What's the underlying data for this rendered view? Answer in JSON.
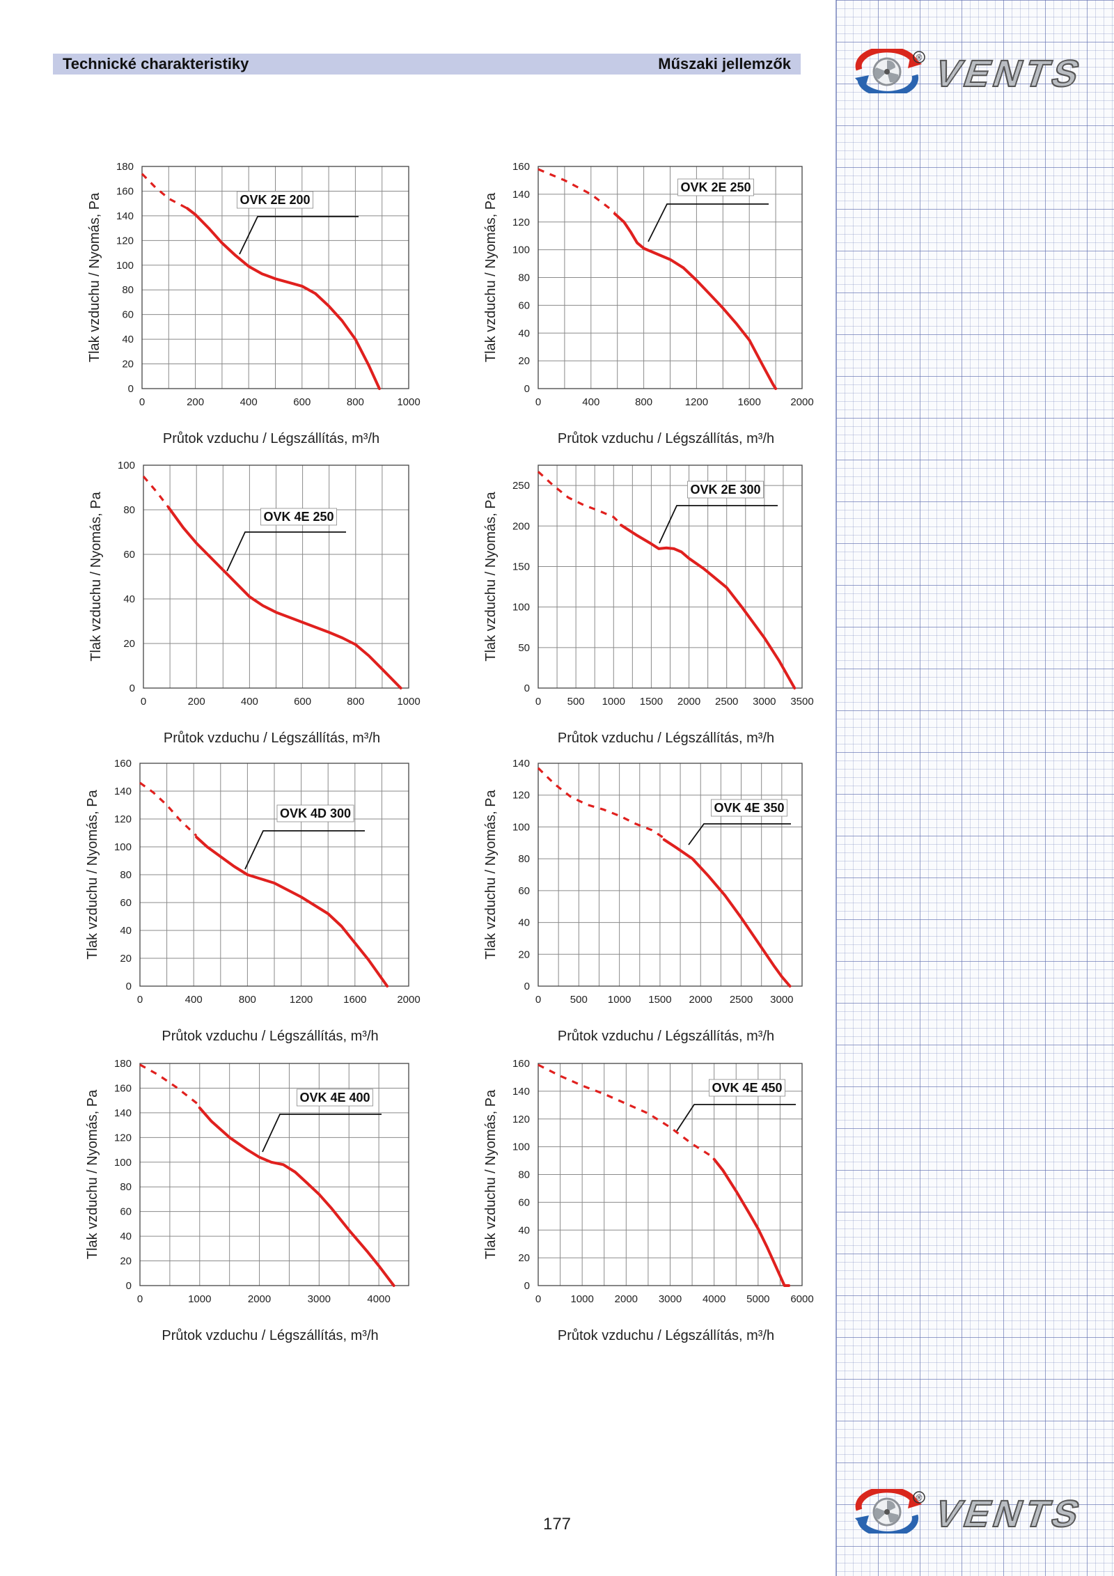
{
  "header": {
    "left": "Technické charakteristiky",
    "right": "Műszaki jellemzők"
  },
  "brand": {
    "name": "VENTS",
    "registered": "®"
  },
  "page_number": "177",
  "colors": {
    "curve": "#e0201e",
    "header_bg": "#c5cbe6",
    "grid": "#8a8a8a",
    "logo_red": "#d9261c",
    "logo_blue": "#2a64b0",
    "logo_silver": "#8e9298"
  },
  "chart_data": [
    {
      "type": "line",
      "title": "OVK 2E 200",
      "xlabel": "Průtok vzduchu / Légszállítás, m³/h",
      "ylabel": "Tlak vzduchu / Nyomás, Pa",
      "xlim": [
        0,
        1000
      ],
      "ylim": [
        0,
        180
      ],
      "xticks": [
        0,
        200,
        400,
        600,
        800,
        1000
      ],
      "yticks": [
        0,
        20,
        40,
        60,
        80,
        100,
        120,
        140,
        160,
        180
      ],
      "grid": true,
      "series": [
        {
          "style": "dashed",
          "x": [
            0,
            50,
            100,
            170
          ],
          "y": [
            174,
            163,
            154,
            146
          ]
        },
        {
          "style": "solid",
          "x": [
            170,
            200,
            250,
            300,
            350,
            400,
            450,
            500,
            550,
            600,
            650,
            700,
            750,
            800,
            850,
            890
          ],
          "y": [
            146,
            141,
            130,
            118,
            108,
            99,
            93,
            89,
            86,
            83,
            77,
            67,
            55,
            40,
            19,
            0
          ]
        }
      ]
    },
    {
      "type": "line",
      "title": "OVK 2E 250",
      "xlabel": "Průtok vzduchu / Légszállítás, m³/h",
      "ylabel": "Tlak vzduchu / Nyomás, Pa",
      "xlim": [
        0,
        2000
      ],
      "ylim": [
        0,
        160
      ],
      "xticks": [
        0,
        400,
        800,
        1200,
        1600,
        2000
      ],
      "yticks": [
        0,
        20,
        40,
        60,
        80,
        100,
        120,
        140,
        160
      ],
      "grid": true,
      "series": [
        {
          "style": "dashed",
          "x": [
            0,
            200,
            400,
            580
          ],
          "y": [
            158,
            150,
            140,
            127
          ]
        },
        {
          "style": "solid",
          "x": [
            580,
            650,
            700,
            750,
            800,
            850,
            900,
            1000,
            1100,
            1200,
            1300,
            1400,
            1500,
            1600,
            1700,
            1780,
            1800
          ],
          "y": [
            126,
            120,
            113,
            105,
            101,
            99,
            97,
            93,
            87,
            78,
            68,
            58,
            47,
            35,
            17,
            3,
            0
          ]
        }
      ]
    },
    {
      "type": "line",
      "title": "OVK 4E 250",
      "xlabel": "Průtok vzduchu / Légszállítás, m³/h",
      "ylabel": "Tlak vzduchu / Nyomás, Pa",
      "xlim": [
        0,
        1000
      ],
      "ylim": [
        0,
        100
      ],
      "xticks": [
        0,
        200,
        400,
        600,
        800,
        1000
      ],
      "yticks": [
        0,
        20,
        40,
        60,
        80,
        100
      ],
      "grid": true,
      "series": [
        {
          "style": "dashed",
          "x": [
            0,
            50,
            95
          ],
          "y": [
            95,
            88,
            81
          ]
        },
        {
          "style": "solid",
          "x": [
            95,
            150,
            200,
            300,
            400,
            450,
            500,
            600,
            700,
            750,
            800,
            850,
            900,
            970
          ],
          "y": [
            81,
            72,
            65,
            53,
            41,
            37,
            34,
            29.5,
            25,
            22.5,
            19.5,
            14.5,
            8.5,
            0
          ]
        }
      ]
    },
    {
      "type": "line",
      "title": "OVK 2E 300",
      "xlabel": "Průtok vzduchu / Légszállítás, m³/h",
      "ylabel": "Tlak vzduchu / Nyomás, Pa",
      "xlim": [
        0,
        3500
      ],
      "ylim": [
        0,
        275
      ],
      "xticks": [
        0,
        500,
        1000,
        1500,
        2000,
        2500,
        3000,
        3500
      ],
      "yticks": [
        0,
        50,
        100,
        150,
        200,
        250
      ],
      "grid": true,
      "series": [
        {
          "style": "dashed",
          "x": [
            0,
            200,
            400,
            600,
            800,
            1000,
            1100
          ],
          "y": [
            267,
            250,
            235,
            226,
            219,
            211,
            202
          ]
        },
        {
          "style": "solid",
          "x": [
            1100,
            1300,
            1500,
            1600,
            1700,
            1800,
            1900,
            2000,
            2200,
            2500,
            2700,
            3000,
            3200,
            3400
          ],
          "y": [
            201,
            189,
            178,
            172,
            173,
            172,
            168,
            160,
            147,
            124,
            100,
            62,
            33,
            0
          ]
        }
      ]
    },
    {
      "type": "line",
      "title": "OVK 4D 300",
      "xlabel": "Průtok vzduchu / Légszállítás, m³/h",
      "ylabel": "Tlak vzduchu / Nyomás, Pa",
      "xlim": [
        0,
        2000
      ],
      "ylim": [
        0,
        160
      ],
      "xticks": [
        0,
        400,
        800,
        1200,
        1600,
        2000
      ],
      "yticks": [
        0,
        20,
        40,
        60,
        80,
        100,
        120,
        140,
        160
      ],
      "grid": true,
      "series": [
        {
          "style": "dashed",
          "x": [
            0,
            100,
            200,
            300,
            420
          ],
          "y": [
            146,
            139,
            130,
            119,
            108
          ]
        },
        {
          "style": "solid",
          "x": [
            420,
            500,
            600,
            700,
            800,
            900,
            1000,
            1200,
            1400,
            1500,
            1600,
            1700,
            1840
          ],
          "y": [
            107,
            100,
            93,
            86,
            80,
            77,
            74,
            64,
            52,
            43,
            31,
            19,
            0
          ]
        }
      ]
    },
    {
      "type": "line",
      "title": "OVK 4E 350",
      "xlabel": "Průtok vzduchu / Légszállítás, m³/h",
      "ylabel": "Tlak vzduchu / Nyomás, Pa",
      "xlim": [
        0,
        3250
      ],
      "ylim": [
        0,
        140
      ],
      "xticks": [
        0,
        500,
        1000,
        1500,
        2000,
        2500,
        3000
      ],
      "yticks": [
        0,
        20,
        40,
        60,
        80,
        100,
        120,
        140
      ],
      "grid": true,
      "series": [
        {
          "style": "dashed",
          "x": [
            0,
            200,
            400,
            600,
            800,
            1000,
            1200,
            1400,
            1550
          ],
          "y": [
            137,
            127,
            119,
            114,
            111,
            107,
            102,
            98,
            93
          ]
        },
        {
          "style": "solid",
          "x": [
            1550,
            1700,
            1900,
            2100,
            2300,
            2500,
            2700,
            2900,
            3000,
            3100
          ],
          "y": [
            92,
            87,
            80,
            69,
            57,
            43,
            28,
            13,
            6,
            0
          ]
        }
      ]
    },
    {
      "type": "line",
      "title": "OVK 4E 400",
      "xlabel": "Průtok vzduchu / Légszállítás, m³/h",
      "ylabel": "Tlak vzduchu / Nyomás, Pa",
      "xlim": [
        0,
        4500
      ],
      "ylim": [
        0,
        180
      ],
      "xticks": [
        0,
        1000,
        2000,
        3000,
        4000
      ],
      "yticks": [
        0,
        20,
        40,
        60,
        80,
        100,
        120,
        140,
        160,
        180
      ],
      "grid": true,
      "series": [
        {
          "style": "dashed",
          "x": [
            0,
            300,
            600,
            1000
          ],
          "y": [
            179,
            171,
            161,
            146
          ]
        },
        {
          "style": "solid",
          "x": [
            1000,
            1200,
            1500,
            1800,
            2000,
            2200,
            2400,
            2600,
            2800,
            3000,
            3200,
            3500,
            3800,
            4000,
            4250
          ],
          "y": [
            144,
            133,
            120,
            110,
            104,
            100,
            98,
            92,
            83,
            74,
            63,
            45,
            28,
            16,
            0
          ]
        }
      ]
    },
    {
      "type": "line",
      "title": "OVK 4E 450",
      "xlabel": "Průtok vzduchu / Légszállítás, m³/h",
      "ylabel": "Tlak vzduchu / Nyomás, Pa",
      "xlim": [
        0,
        6000
      ],
      "ylim": [
        0,
        160
      ],
      "xticks": [
        0,
        1000,
        2000,
        3000,
        4000,
        5000,
        6000
      ],
      "yticks": [
        0,
        20,
        40,
        60,
        80,
        100,
        120,
        140,
        160
      ],
      "grid": true,
      "series": [
        {
          "style": "dashed",
          "x": [
            0,
            500,
            1000,
            1500,
            2000,
            2500,
            3000,
            3500,
            4000
          ],
          "y": [
            159,
            151,
            144,
            138,
            131,
            124,
            114,
            102,
            92
          ]
        },
        {
          "style": "solid",
          "x": [
            4000,
            4200,
            4500,
            4800,
            5000,
            5200,
            5400,
            5600,
            5700
          ],
          "y": [
            91,
            83,
            68,
            52,
            41,
            28,
            14,
            0,
            0
          ]
        }
      ]
    }
  ]
}
